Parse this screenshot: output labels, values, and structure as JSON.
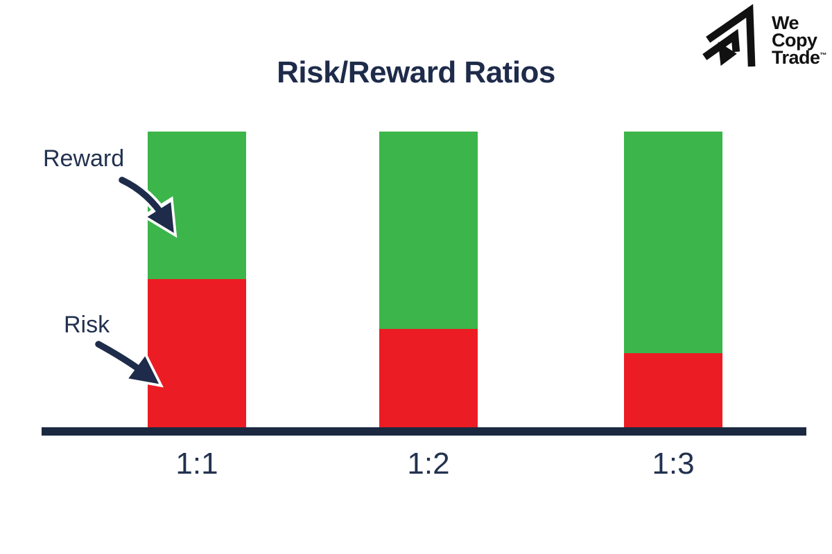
{
  "logo": {
    "line1": "We",
    "line2": "Copy",
    "line3": "Trade",
    "trademark": "™"
  },
  "chart_data": {
    "type": "bar",
    "stacked": true,
    "normalized": true,
    "title": "Risk/Reward Ratios",
    "categories": [
      "1:1",
      "1:2",
      "1:3"
    ],
    "series": [
      {
        "name": "Risk",
        "color": "#EC1C24",
        "values": [
          1,
          1,
          1
        ]
      },
      {
        "name": "Reward",
        "color": "#3CB54A",
        "values": [
          1,
          2,
          3
        ]
      }
    ],
    "annotations": [
      {
        "label": "Reward"
      },
      {
        "label": "Risk"
      }
    ],
    "xlabel": "",
    "ylabel": "",
    "grid": false,
    "legend_position": "none"
  },
  "colors": {
    "risk_red": "#EC1C24",
    "reward_green": "#3CB54A",
    "navy_text": "#22314F",
    "axis_navy": "#1A2940",
    "logo_black": "#111111"
  }
}
